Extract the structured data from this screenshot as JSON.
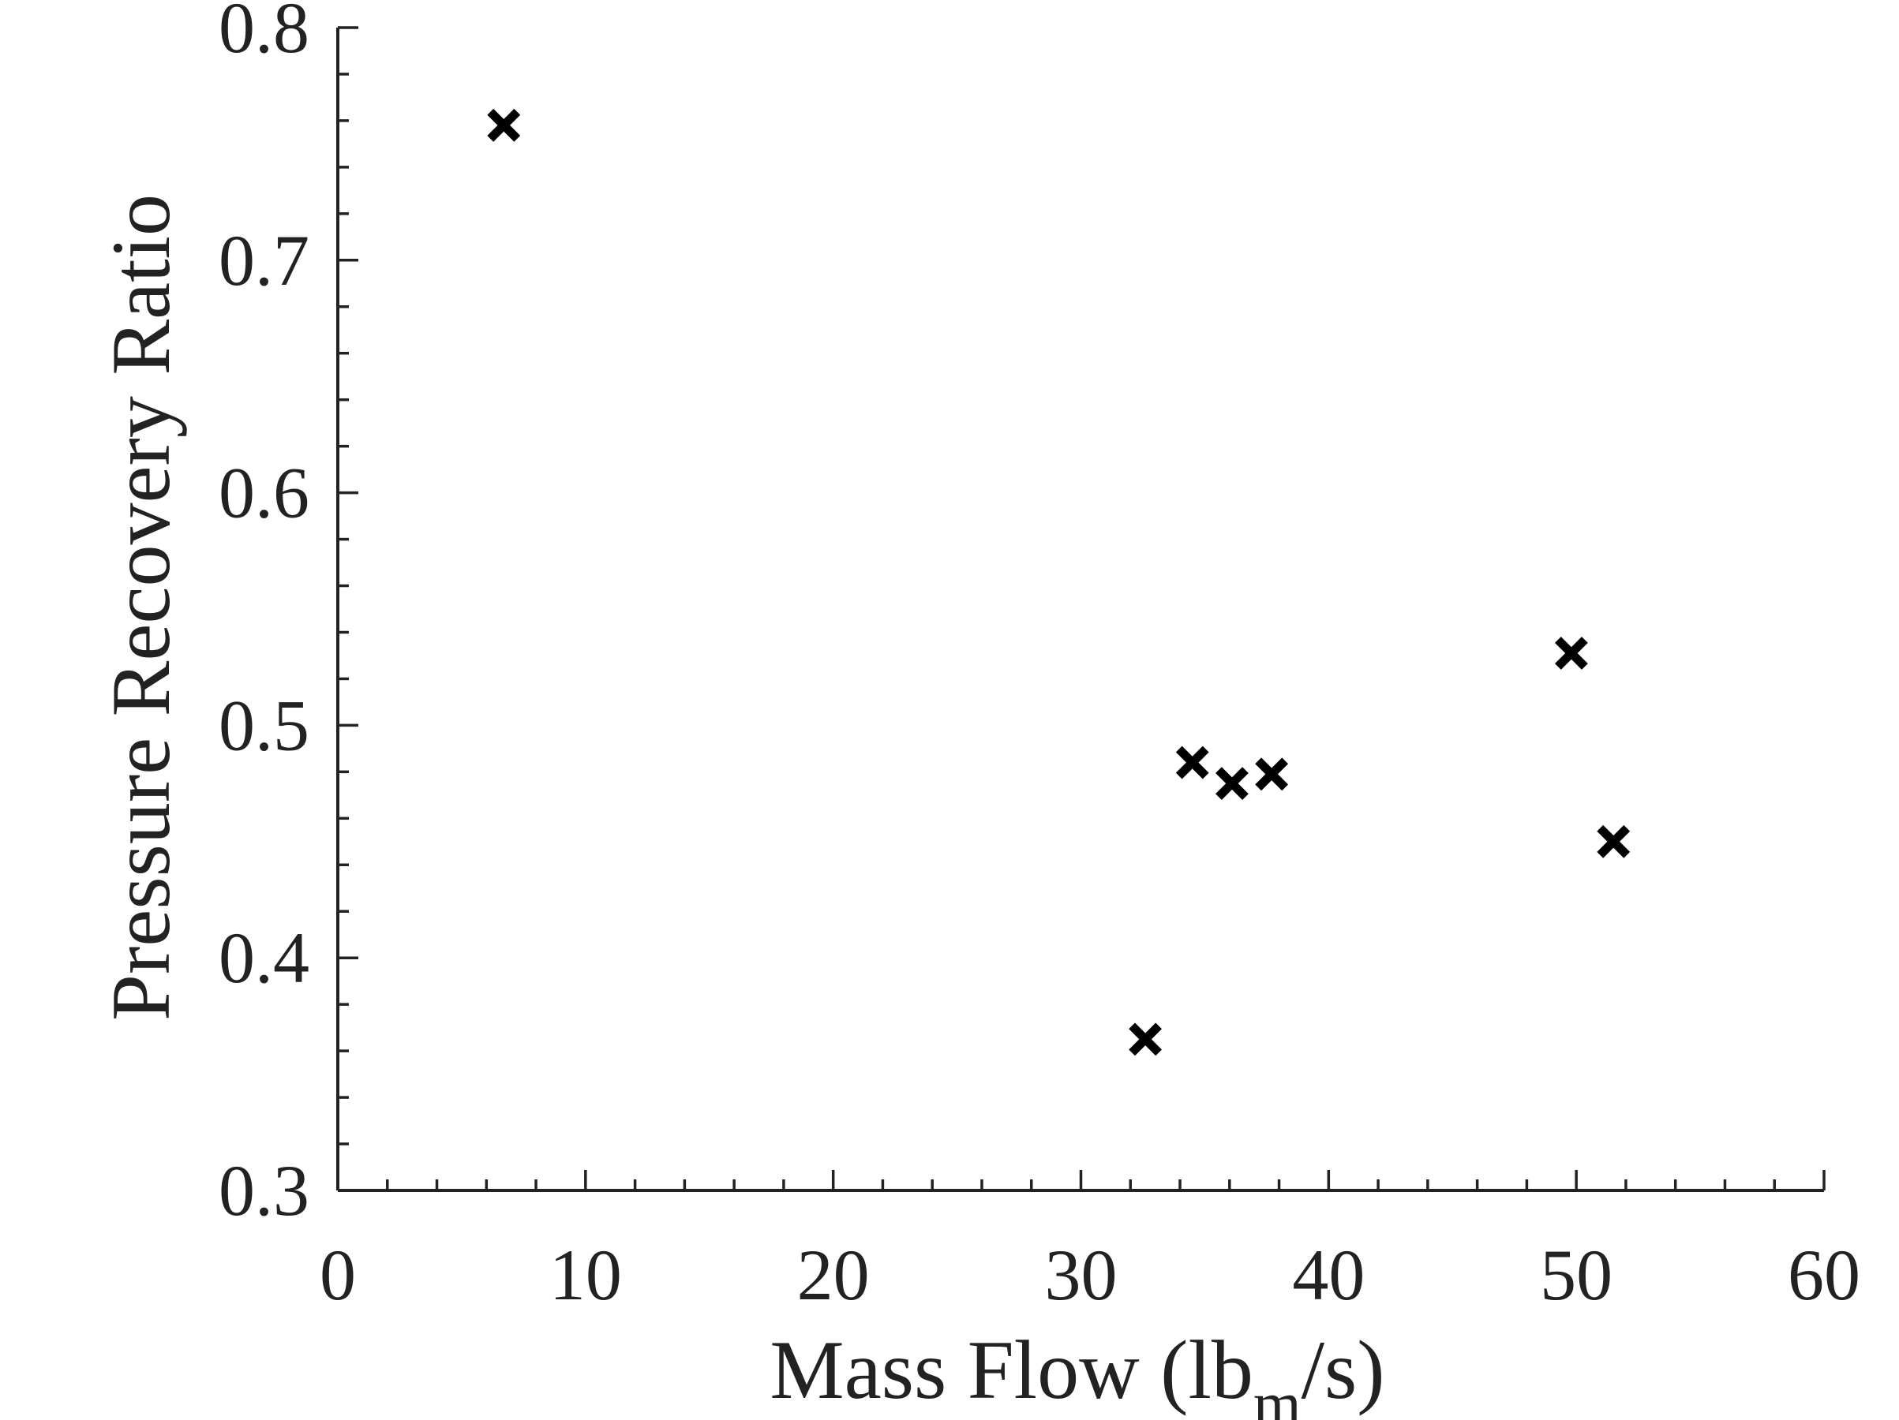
{
  "chart_data": {
    "type": "scatter",
    "xlabel": "Mass Flow (lb",
    "xlabel_sub": "m",
    "xlabel_end": "/s)",
    "ylabel": "Pressure Recovery Ratio",
    "xlim": [
      0,
      60
    ],
    "ylim": [
      0.3,
      0.8
    ],
    "x_ticks": [
      0,
      10,
      20,
      30,
      40,
      50,
      60
    ],
    "x_tick_labels": [
      "0",
      "10",
      "20",
      "30",
      "40",
      "50",
      "60"
    ],
    "x_minor_step": 2,
    "y_ticks": [
      0.3,
      0.4,
      0.5,
      0.6,
      0.7,
      0.8
    ],
    "y_tick_labels": [
      "0.3",
      "0.4",
      "0.5",
      "0.6",
      "0.7",
      "0.8"
    ],
    "y_minor_step": 0.02,
    "grid": false,
    "marker": "x",
    "marker_color": "#000000",
    "series": [
      {
        "points": [
          {
            "x": 6.7,
            "y": 0.758
          },
          {
            "x": 32.6,
            "y": 0.365
          },
          {
            "x": 34.5,
            "y": 0.484
          },
          {
            "x": 36.1,
            "y": 0.475
          },
          {
            "x": 37.7,
            "y": 0.479
          },
          {
            "x": 49.8,
            "y": 0.531
          },
          {
            "x": 51.5,
            "y": 0.45
          }
        ]
      }
    ]
  }
}
